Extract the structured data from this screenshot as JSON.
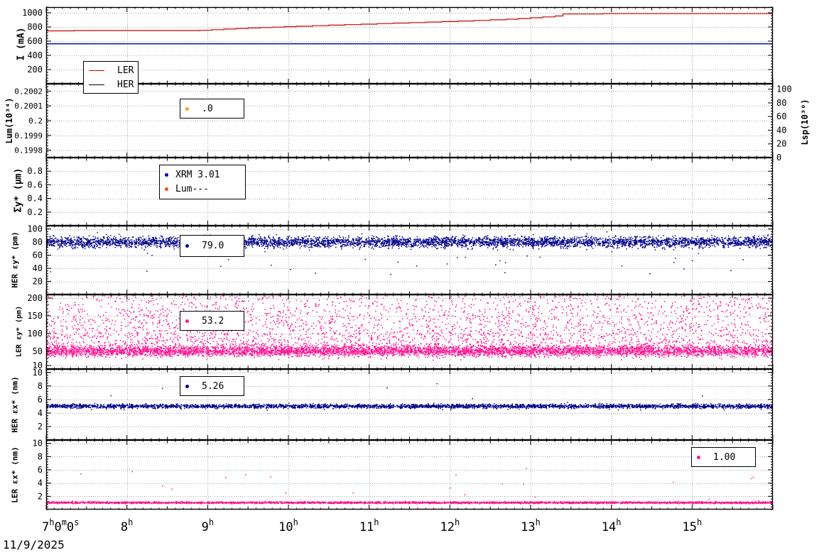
{
  "chart_data": {
    "type": "scatter",
    "title": "",
    "grid": "dotted",
    "x_axis": {
      "range": [
        7,
        16
      ],
      "hour_ticks": [
        7,
        8,
        9,
        10,
        11,
        12,
        13,
        14,
        15
      ],
      "labels": [
        {
          "h": 7,
          "parts": [
            [
              "7",
              0
            ],
            [
              "h",
              1
            ],
            [
              "0",
              0
            ],
            [
              "m",
              1
            ],
            [
              "0",
              0
            ],
            [
              "s",
              1
            ]
          ]
        },
        {
          "h": 8,
          "parts": [
            [
              "8",
              0
            ],
            [
              "h",
              1
            ]
          ]
        },
        {
          "h": 9,
          "parts": [
            [
              "9",
              0
            ],
            [
              "h",
              1
            ]
          ]
        },
        {
          "h": 10,
          "parts": [
            [
              "10",
              0
            ],
            [
              "h",
              1
            ]
          ]
        },
        {
          "h": 11,
          "parts": [
            [
              "11",
              0
            ],
            [
              "h",
              1
            ]
          ]
        },
        {
          "h": 12,
          "parts": [
            [
              "12",
              0
            ],
            [
              "h",
              1
            ]
          ]
        },
        {
          "h": 13,
          "parts": [
            [
              "13",
              0
            ],
            [
              "h",
              1
            ]
          ]
        },
        {
          "h": 14,
          "parts": [
            [
              "14",
              0
            ],
            [
              "h",
              1
            ]
          ]
        },
        {
          "h": 15,
          "parts": [
            [
              "15",
              0
            ],
            [
              "h",
              1
            ]
          ]
        }
      ],
      "date": "11/9/2025"
    },
    "panels": [
      {
        "name": "beam-current",
        "ylabel": "I (mA)",
        "ylim": [
          0,
          1080
        ],
        "yminor": 40,
        "yticks": [
          {
            "v": 200,
            "l": "200"
          },
          {
            "v": 400,
            "l": "400"
          },
          {
            "v": 600,
            "l": "600"
          },
          {
            "v": 800,
            "l": "800"
          },
          {
            "v": 1000,
            "l": "1000"
          }
        ],
        "series": [
          {
            "type": "step",
            "name": "LER",
            "color": "#cc0000",
            "points": [
              [
                7,
                745
              ],
              [
                7.35,
                750
              ],
              [
                8.9,
                753
              ],
              [
                9.05,
                762
              ],
              [
                9.2,
                771
              ],
              [
                9.35,
                779
              ],
              [
                9.5,
                786
              ],
              [
                9.65,
                792
              ],
              [
                9.8,
                798
              ],
              [
                9.95,
                804
              ],
              [
                10.1,
                810
              ],
              [
                10.3,
                818
              ],
              [
                10.5,
                826
              ],
              [
                10.7,
                833
              ],
              [
                10.9,
                840
              ],
              [
                11.1,
                848
              ],
              [
                11.3,
                855
              ],
              [
                11.5,
                862
              ],
              [
                11.7,
                869
              ],
              [
                11.9,
                876
              ],
              [
                12.1,
                884
              ],
              [
                12.3,
                892
              ],
              [
                12.5,
                901
              ],
              [
                12.7,
                910
              ],
              [
                12.85,
                919
              ],
              [
                13.0,
                930
              ],
              [
                13.15,
                942
              ],
              [
                13.3,
                955
              ],
              [
                13.4,
                983
              ],
              [
                13.9,
                988
              ],
              [
                16,
                988
              ]
            ]
          },
          {
            "type": "hline",
            "name": "HER",
            "color": "#00008b",
            "value": 563
          }
        ],
        "legend": {
          "entries": [
            {
              "label": "LER",
              "color": "#cc0000",
              "marker": "line"
            },
            {
              "label": "HER",
              "color": "#000000",
              "marker": "line"
            }
          ]
        }
      },
      {
        "name": "luminosity",
        "ylabel": "Lum(10³⁴)",
        "ylim": [
          0.19975,
          0.20025
        ],
        "yminor": 2e-05,
        "yticks": [
          {
            "v": 0.1998,
            "l": "0.1998"
          },
          {
            "v": 0.1999,
            "l": "0.1999"
          },
          {
            "v": 0.2,
            "l": "0.2"
          },
          {
            "v": 0.2001,
            "l": "0.2001"
          },
          {
            "v": 0.2002,
            "l": "0.2002"
          }
        ],
        "right_axis": {
          "label": "Lsp(10³⁰)",
          "lim": [
            0,
            108
          ],
          "minor": 4,
          "ticks": [
            {
              "v": 0,
              "l": "0"
            },
            {
              "v": 20,
              "l": "20"
            },
            {
              "v": 40,
              "l": "40"
            },
            {
              "v": 60,
              "l": "60"
            },
            {
              "v": 80,
              "l": "80"
            },
            {
              "v": 100,
              "l": "100"
            }
          ]
        },
        "series": [],
        "legend": {
          "entries": [
            {
              "label": ".0",
              "color": "#ffa500",
              "marker": "dot"
            }
          ]
        }
      },
      {
        "name": "sigma-y-star",
        "ylabel": "Σy* (µm)",
        "ylim": [
          0,
          1.0
        ],
        "yminor": 0.04,
        "yticks": [
          {
            "v": 0.2,
            "l": "0.2"
          },
          {
            "v": 0.4,
            "l": "0.4"
          },
          {
            "v": 0.6,
            "l": "0.6"
          },
          {
            "v": 0.8,
            "l": "0.8"
          }
        ],
        "series": [],
        "legend": {
          "entries": [
            {
              "label": "XRM 3.01",
              "color": "#0000cd",
              "marker": "dot"
            },
            {
              "label": "Lum---",
              "color": "#ff4500",
              "marker": "dot"
            }
          ]
        }
      },
      {
        "name": "her-emittance-y",
        "ylabel": "HER εy* (pm)",
        "ylim": [
          0,
          105
        ],
        "yminor": 4,
        "yticks": [
          {
            "v": 20,
            "l": "20"
          },
          {
            "v": 40,
            "l": "40"
          },
          {
            "v": 60,
            "l": "60"
          },
          {
            "v": 80,
            "l": "80"
          },
          {
            "v": 100,
            "l": "100"
          }
        ],
        "series": [
          {
            "type": "scatter",
            "color": "#00008b",
            "seed": 42,
            "n": 5000,
            "mean": 80,
            "sd": 4,
            "clip": [
              28,
              100
            ],
            "spots": {
              "n": 42,
              "lo": 30,
              "hi": 72
            }
          }
        ],
        "legend": {
          "entries": [
            {
              "label": "79.0",
              "color": "#00008b",
              "marker": "dot"
            }
          ]
        }
      },
      {
        "name": "ler-emittance-y",
        "ylabel": "LER εy* (pm)",
        "ylim": [
          0,
          210
        ],
        "yminor": 10,
        "yticks": [
          {
            "v": 10,
            "l": "10"
          },
          {
            "v": 50,
            "l": "50"
          },
          {
            "v": 100,
            "l": "100"
          },
          {
            "v": 150,
            "l": "150"
          },
          {
            "v": 200,
            "l": "200"
          }
        ],
        "series": [
          {
            "type": "scatter",
            "color": "#ff1493",
            "seed": 7,
            "n": 5600,
            "mean": 50,
            "sd": 7,
            "clip": [
              25,
              208
            ],
            "tail": {
              "n": 3200,
              "lo": 58,
              "hi": 207,
              "exp": 1.6
            }
          }
        ],
        "legend": {
          "entries": [
            {
              "label": "53.2",
              "color": "#ff1493",
              "marker": "dot"
            }
          ]
        }
      },
      {
        "name": "her-emittance-x",
        "ylabel": "HER εx* (nm)",
        "ylim": [
          0,
          10.5
        ],
        "yminor": 0.4,
        "yticks": [
          {
            "v": 2,
            "l": "2"
          },
          {
            "v": 4,
            "l": "4"
          },
          {
            "v": 6,
            "l": "6"
          },
          {
            "v": 8,
            "l": "8"
          },
          {
            "v": 10,
            "l": "10"
          }
        ],
        "series": [
          {
            "type": "scatter",
            "color": "#00008b",
            "seed": 13,
            "n": 3400,
            "mean": 5.0,
            "sd": 0.15,
            "clip": [
              4.3,
              5.7
            ],
            "spots": {
              "n": 6,
              "lo": 5.8,
              "hi": 9.0
            }
          }
        ],
        "legend": {
          "entries": [
            {
              "label": "5.26",
              "color": "#00008b",
              "marker": "dot"
            }
          ]
        }
      },
      {
        "name": "ler-emittance-x",
        "ylabel": "LER εx* (nm)",
        "ylim": [
          0,
          10.5
        ],
        "yminor": 0.4,
        "yticks": [
          {
            "v": 2,
            "l": "2"
          },
          {
            "v": 4,
            "l": "4"
          },
          {
            "v": 6,
            "l": "6"
          },
          {
            "v": 8,
            "l": "8"
          },
          {
            "v": 10,
            "l": "10"
          }
        ],
        "series": [
          {
            "type": "scatter",
            "color": "#ff1493",
            "seed": 99,
            "n": 3400,
            "mean": 1.05,
            "sd": 0.07,
            "clip": [
              0.8,
              1.35
            ],
            "spots": {
              "n": 20,
              "lo": 1.5,
              "hi": 6.4
            }
          }
        ],
        "legend": {
          "entries": [
            {
              "label": "1.00",
              "color": "#ff1493",
              "marker": "dot"
            }
          ]
        }
      }
    ]
  }
}
